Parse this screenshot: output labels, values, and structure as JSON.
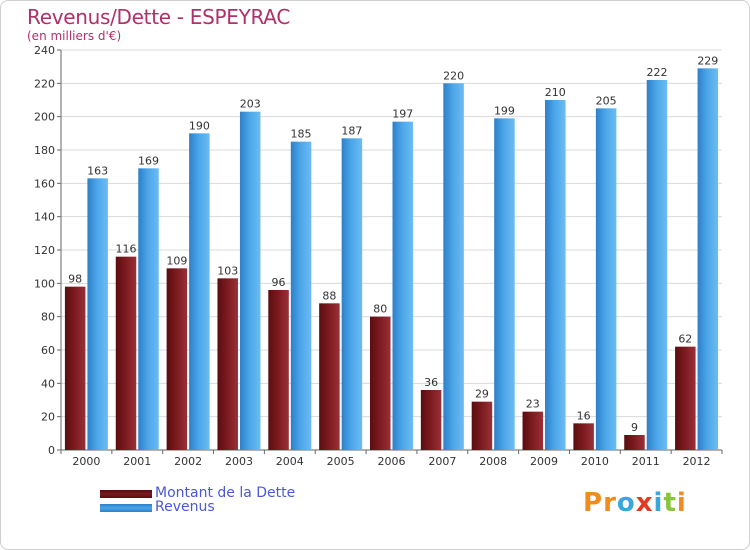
{
  "header": {
    "title": "Revenus/Dette - ESPEYRAC",
    "subtitle": "(en milliers d'€)"
  },
  "logo": {
    "text": "Proxiti",
    "colors": [
      "#f08c1e",
      "#f08c1e",
      "#3aa7dc",
      "#e23b1f",
      "#3aa7dc",
      "#8ac43f",
      "#f08c1e"
    ]
  },
  "colors": {
    "dette": "#7a1a1e",
    "revenus": "#4aa5e8",
    "axis_text": "#333333",
    "grid": "#d9d9d9",
    "plot_bg": "#ffffff"
  },
  "chart_data": {
    "type": "bar",
    "title": "Revenus/Dette - ESPEYRAC",
    "subtitle": "(en milliers d'€)",
    "categories": [
      "2000",
      "2001",
      "2002",
      "2003",
      "2004",
      "2005",
      "2006",
      "2007",
      "2008",
      "2009",
      "2010",
      "2011",
      "2012"
    ],
    "series": [
      {
        "name": "Montant de la Dette",
        "values": [
          98,
          116,
          109,
          103,
          96,
          88,
          80,
          36,
          29,
          23,
          16,
          9,
          62
        ]
      },
      {
        "name": "Revenus",
        "values": [
          163,
          169,
          190,
          203,
          185,
          187,
          197,
          220,
          199,
          210,
          205,
          222,
          229
        ]
      }
    ],
    "ylim": [
      0,
      240
    ],
    "yticks": [
      0,
      20,
      40,
      60,
      80,
      100,
      120,
      140,
      160,
      180,
      200,
      220,
      240
    ],
    "grid": true,
    "legend": "bottom-left"
  }
}
